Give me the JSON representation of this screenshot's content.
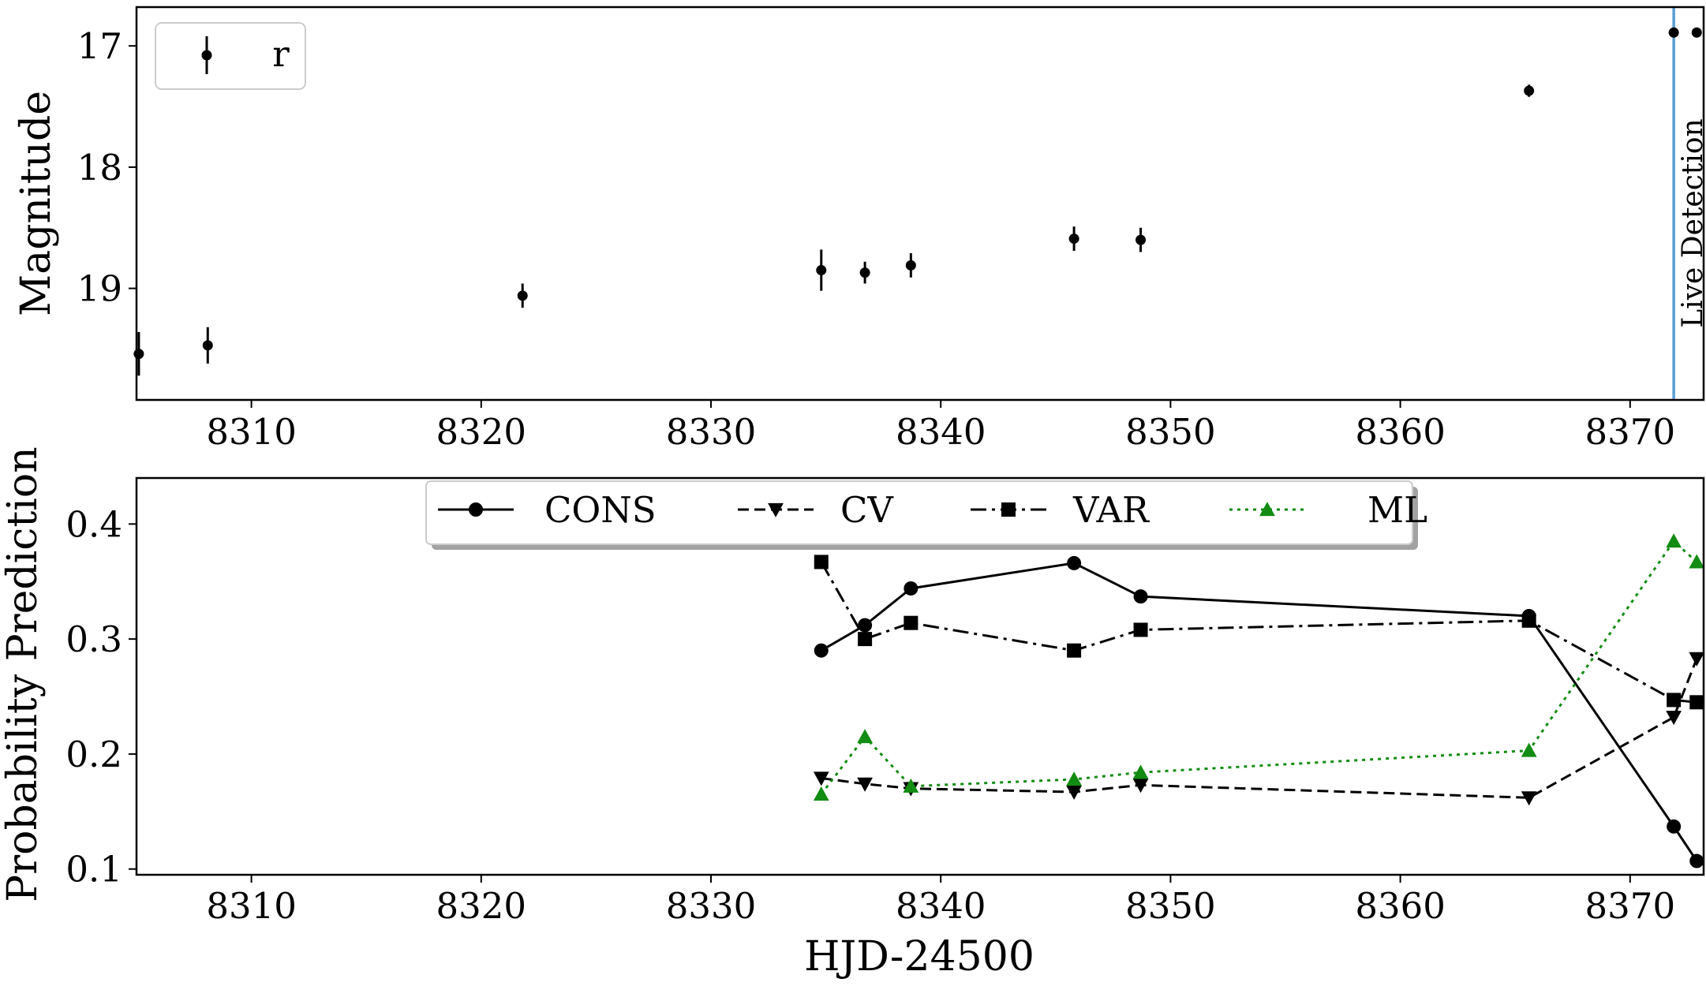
{
  "chart_data": [
    {
      "type": "scatter",
      "panel": "top",
      "title": "",
      "xlabel": "",
      "ylabel": "Magnitude",
      "xlim": [
        8305.0,
        8373.2
      ],
      "ylim": [
        19.92,
        16.68
      ],
      "y_inverted": true,
      "xticks": [
        "8310",
        "8320",
        "8330",
        "8340",
        "8350",
        "8360",
        "8370"
      ],
      "yticks": [
        "17",
        "18",
        "19"
      ],
      "legend_position": "top-left",
      "series": [
        {
          "name": "r",
          "color": "#000000",
          "marker": "circle",
          "points": [
            {
              "x": 8305.1,
              "y": 19.54,
              "err": 0.18
            },
            {
              "x": 8308.1,
              "y": 19.47,
              "err": 0.15
            },
            {
              "x": 8321.8,
              "y": 19.06,
              "err": 0.1
            },
            {
              "x": 8334.8,
              "y": 18.85,
              "err": 0.17
            },
            {
              "x": 8336.7,
              "y": 18.87,
              "err": 0.09
            },
            {
              "x": 8338.7,
              "y": 18.81,
              "err": 0.1
            },
            {
              "x": 8345.8,
              "y": 18.59,
              "err": 0.1
            },
            {
              "x": 8348.7,
              "y": 18.6,
              "err": 0.1
            },
            {
              "x": 8365.6,
              "y": 17.37,
              "err": 0.05
            },
            {
              "x": 8371.9,
              "y": 16.89,
              "err": 0.03
            },
            {
              "x": 8372.9,
              "y": 16.89,
              "err": 0.03
            }
          ]
        }
      ],
      "vline": {
        "x": 8371.9,
        "color": "#5a9fd4",
        "label": "Live Detection"
      }
    },
    {
      "type": "line",
      "panel": "bottom",
      "title": "",
      "xlabel": "HJD-24500",
      "ylabel": "Probability Prediction",
      "xlim": [
        8305.0,
        8373.2
      ],
      "ylim": [
        0.095,
        0.44
      ],
      "xticks": [
        "8310",
        "8320",
        "8330",
        "8340",
        "8350",
        "8360",
        "8370"
      ],
      "yticks": [
        "0.1",
        "0.2",
        "0.3",
        "0.4"
      ],
      "legend_position": "top-center",
      "x": [
        8334.8,
        8336.7,
        8338.7,
        8345.8,
        8348.7,
        8365.6,
        8371.9,
        8372.9
      ],
      "series": [
        {
          "name": "CONS",
          "color": "#000000",
          "marker": "circle",
          "dash": "solid",
          "values": [
            0.29,
            0.312,
            0.344,
            0.366,
            0.337,
            0.32,
            0.137,
            0.107
          ]
        },
        {
          "name": "CV",
          "color": "#000000",
          "marker": "triangle-down",
          "dash": "dashed",
          "values": [
            0.179,
            0.174,
            0.17,
            0.167,
            0.173,
            0.162,
            0.232,
            0.283
          ]
        },
        {
          "name": "VAR",
          "color": "#000000",
          "marker": "square",
          "dash": "dashdot",
          "values": [
            0.367,
            0.3,
            0.314,
            0.29,
            0.308,
            0.316,
            0.247,
            0.245
          ]
        },
        {
          "name": "ML",
          "color": "#128c12",
          "marker": "triangle-up",
          "dash": "dotted",
          "values": [
            0.165,
            0.215,
            0.172,
            0.178,
            0.184,
            0.203,
            0.385,
            0.367
          ]
        }
      ]
    }
  ]
}
